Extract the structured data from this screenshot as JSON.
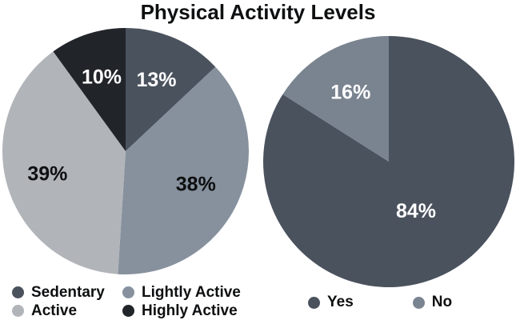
{
  "title": "Physical Activity Levels",
  "background_color": "#ffffff",
  "text_color": "#0e0f10",
  "chart_data": [
    {
      "type": "pie",
      "name": "activity-levels",
      "title": "Physical Activity Levels",
      "categories": [
        "Sedentary",
        "Lightly Active",
        "Active",
        "Highly Active"
      ],
      "values": [
        13,
        38,
        39,
        10
      ],
      "start_angle_deg": 0,
      "direction": "clockwise",
      "legend_position": "bottom",
      "legend_columns": 2,
      "slices": [
        {
          "label": "Sedentary",
          "value": 13,
          "display": "13%",
          "color": "#4a525e",
          "label_color": "#ffffff",
          "label_r_frac": 0.63
        },
        {
          "label": "Lightly Active",
          "value": 38,
          "display": "38%",
          "color": "#87919e",
          "label_color": "#0e0f10",
          "label_r_frac": 0.63
        },
        {
          "label": "Active",
          "value": 39,
          "display": "39%",
          "color": "#b1b5b9",
          "label_color": "#0e0f10",
          "label_r_frac": 0.66
        },
        {
          "label": "Highly Active",
          "value": 10,
          "display": "10%",
          "color": "#212429",
          "label_color": "#ffffff",
          "label_r_frac": 0.63
        }
      ]
    },
    {
      "type": "pie",
      "name": "yes-no",
      "title": "",
      "categories": [
        "Yes",
        "No"
      ],
      "values": [
        84,
        16
      ],
      "start_angle_deg": 0,
      "direction": "clockwise",
      "legend_position": "bottom",
      "legend_columns": 2,
      "slices": [
        {
          "label": "Yes",
          "value": 84,
          "display": "84%",
          "color": "#4a525e",
          "label_color": "#ffffff",
          "label_r_frac": 0.45
        },
        {
          "label": "No",
          "value": 16,
          "display": "16%",
          "color": "#7a8490",
          "label_color": "#ffffff",
          "label_r_frac": 0.63
        }
      ]
    }
  ]
}
